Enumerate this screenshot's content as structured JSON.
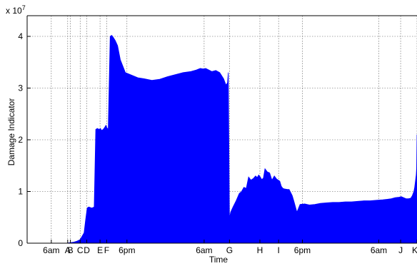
{
  "chart_data": {
    "type": "area",
    "title": "",
    "xlabel": "Time",
    "ylabel": "Damage Indicator",
    "y_multiplier_label": "x 10",
    "y_multiplier_exponent": "7",
    "ylim": [
      0,
      4.4
    ],
    "xlim": [
      0,
      1000
    ],
    "grid": true,
    "color": "#0000ff",
    "yticks": [
      {
        "value": 0,
        "label": "0"
      },
      {
        "value": 1,
        "label": "1"
      },
      {
        "value": 2,
        "label": "2"
      },
      {
        "value": 3,
        "label": "3"
      },
      {
        "value": 4,
        "label": "4"
      }
    ],
    "xticks": [
      {
        "value": 62,
        "label": "6am"
      },
      {
        "value": 104,
        "label": "A"
      },
      {
        "value": 111,
        "label": "B"
      },
      {
        "value": 136,
        "label": "C"
      },
      {
        "value": 153,
        "label": "D"
      },
      {
        "value": 187,
        "label": "E"
      },
      {
        "value": 204,
        "label": "F"
      },
      {
        "value": 256,
        "label": "6pm"
      },
      {
        "value": 454,
        "label": "6am"
      },
      {
        "value": 519,
        "label": "G"
      },
      {
        "value": 597,
        "label": "H"
      },
      {
        "value": 645,
        "label": "I"
      },
      {
        "value": 706,
        "label": "6pm"
      },
      {
        "value": 902,
        "label": "6am"
      },
      {
        "value": 958,
        "label": "J"
      },
      {
        "value": 1000,
        "label": "K"
      }
    ],
    "series": [
      {
        "x": [
          0,
          100,
          120,
          128,
          136,
          146,
          150,
          154,
          158,
          166,
          172,
          176,
          180,
          185,
          188,
          191,
          195,
          199,
          202,
          204,
          208,
          213,
          217,
          221,
          226,
          232,
          239,
          252,
          268,
          284,
          300,
          320,
          340,
          360,
          380,
          400,
          420,
          434,
          444,
          452,
          458,
          466,
          474,
          484,
          494,
          504,
          510,
          514,
          516,
          519,
          522,
          528,
          536,
          544,
          550,
          556,
          562,
          568,
          574,
          580,
          586,
          590,
          594,
          598,
          602,
          606,
          610,
          616,
          622,
          628,
          634,
          640,
          648,
          652,
          656,
          660,
          668,
          672,
          676,
          680,
          684,
          692,
          700,
          712,
          724,
          738,
          752,
          768,
          784,
          800,
          816,
          832,
          848,
          864,
          880,
          896,
          912,
          924,
          934,
          944,
          954,
          960,
          966,
          972,
          978,
          984,
          988,
          992,
          994,
          996,
          998,
          999,
          1000
        ],
        "y": [
          0,
          0,
          0.02,
          0.04,
          0.07,
          0.2,
          0.45,
          0.68,
          0.7,
          0.68,
          0.7,
          2.2,
          2.22,
          2.2,
          2.22,
          2.18,
          2.2,
          2.24,
          2.28,
          2.24,
          2.2,
          4.0,
          4.02,
          3.98,
          3.92,
          3.82,
          3.55,
          3.3,
          3.25,
          3.2,
          3.18,
          3.15,
          3.17,
          3.22,
          3.26,
          3.3,
          3.32,
          3.35,
          3.38,
          3.37,
          3.38,
          3.35,
          3.32,
          3.34,
          3.3,
          3.18,
          3.06,
          3.1,
          3.3,
          0.48,
          0.6,
          0.7,
          0.82,
          0.96,
          1.0,
          1.08,
          1.06,
          1.28,
          1.22,
          1.25,
          1.3,
          1.27,
          1.32,
          1.28,
          1.23,
          1.26,
          1.44,
          1.38,
          1.36,
          1.22,
          1.3,
          1.24,
          1.2,
          1.1,
          1.06,
          1.05,
          1.04,
          1.04,
          0.98,
          0.92,
          0.82,
          0.6,
          0.75,
          0.76,
          0.74,
          0.75,
          0.77,
          0.78,
          0.79,
          0.79,
          0.8,
          0.8,
          0.81,
          0.82,
          0.82,
          0.83,
          0.84,
          0.85,
          0.86,
          0.88,
          0.89,
          0.9,
          0.88,
          0.86,
          0.86,
          0.87,
          0.92,
          1.0,
          1.08,
          1.2,
          1.32,
          1.45,
          2.1
        ]
      }
    ]
  }
}
